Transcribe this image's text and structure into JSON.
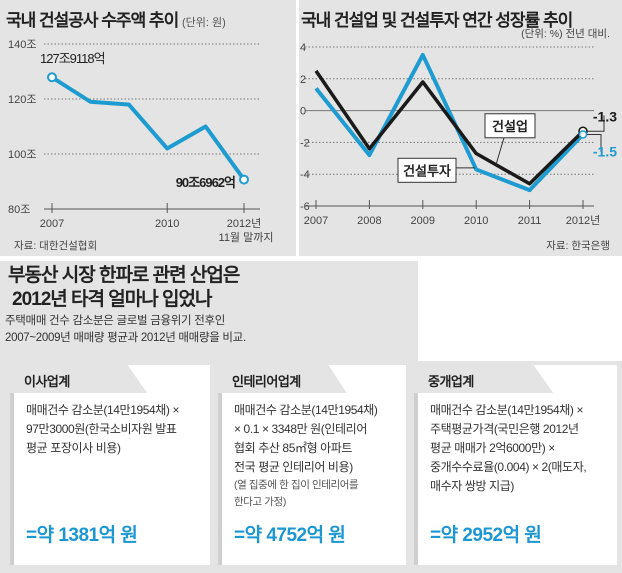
{
  "chart_data": [
    {
      "type": "line",
      "title": "국내 건설공사 수주액 추이",
      "unit": "(단위: 원)",
      "x": [
        2007,
        2008,
        2009,
        2010,
        2011,
        2012
      ],
      "x_tick_labels": [
        "2007",
        "2010",
        "2012년"
      ],
      "x_sub_label": "11월 말까지",
      "y_ticks": [
        "140조",
        "120조",
        "100조",
        "80조"
      ],
      "ylim": [
        80,
        140
      ],
      "series": [
        {
          "name": "수주액",
          "color": "#1e9bd0",
          "values": [
            127.9,
            119,
            118,
            102,
            110,
            90.7
          ]
        }
      ],
      "annotations": [
        "127조9118억",
        "90조6962억"
      ],
      "source": "자료: 대한건설협회"
    },
    {
      "type": "line",
      "title": "국내 건설업 및 건설투자 연간 성장률 추이",
      "unit": "(단위: %) 전년 대비.",
      "x": [
        2007,
        2008,
        2009,
        2010,
        2011,
        2012
      ],
      "x_tick_labels": [
        "2007",
        "2008",
        "2009",
        "2010",
        "2011",
        "2012년"
      ],
      "y_ticks": [
        "4",
        "2",
        "0",
        "-2",
        "-4",
        "-6"
      ],
      "ylim": [
        -6,
        4
      ],
      "series": [
        {
          "name": "건설업",
          "color": "#1a1a1a",
          "values": [
            2.5,
            -2.4,
            1.8,
            -2.7,
            -4.6,
            -1.3
          ]
        },
        {
          "name": "건설투자",
          "color": "#1e9bd0",
          "values": [
            1.4,
            -2.8,
            3.5,
            -3.7,
            -5.0,
            -1.5
          ]
        }
      ],
      "end_labels": [
        "-1.3",
        "-1.5"
      ],
      "source": "자료: 한국은행"
    }
  ],
  "section": {
    "headline": [
      "부동산 시장 한파로 관련 산업은",
      "2012년 타격 얼마나 입었나"
    ],
    "desc": [
      "주택매매 건수 감소분은 글로벌 금융위기 전후인",
      "2007~2009년 매매량 평균과 2012년 매매량을 비교."
    ],
    "cards": [
      {
        "title": "이사업계",
        "lines": [
          "매매건수 감소분(14만1954채) ×",
          "97만3000원(한국소비자원 발표",
          "평균 포장이사 비용)"
        ],
        "note": [],
        "result": "=약 1381억 원"
      },
      {
        "title": "인테리어업계",
        "lines": [
          "매매건수 감소분(14만1954채)",
          "× 0.1 × 3348만 원(인테리어",
          "협회 추산 85㎡형 아파트",
          "전국 평균 인테리어 비용)"
        ],
        "note": [
          "(열 집중에 한 집이 인테리어를",
          "한다고 가정)"
        ],
        "result": "=약 4752억 원"
      },
      {
        "title": "중개업계",
        "lines": [
          "매매건수 감소분(14만1954채) ×",
          "주택평균가격(국민은행 2012년",
          "평균 매매가 2억6000만) ×",
          "중개수수료율(0.004) × 2(매도자,",
          "매수자 쌍방 지급)"
        ],
        "note": [],
        "result": "=약 2952억 원"
      }
    ]
  }
}
